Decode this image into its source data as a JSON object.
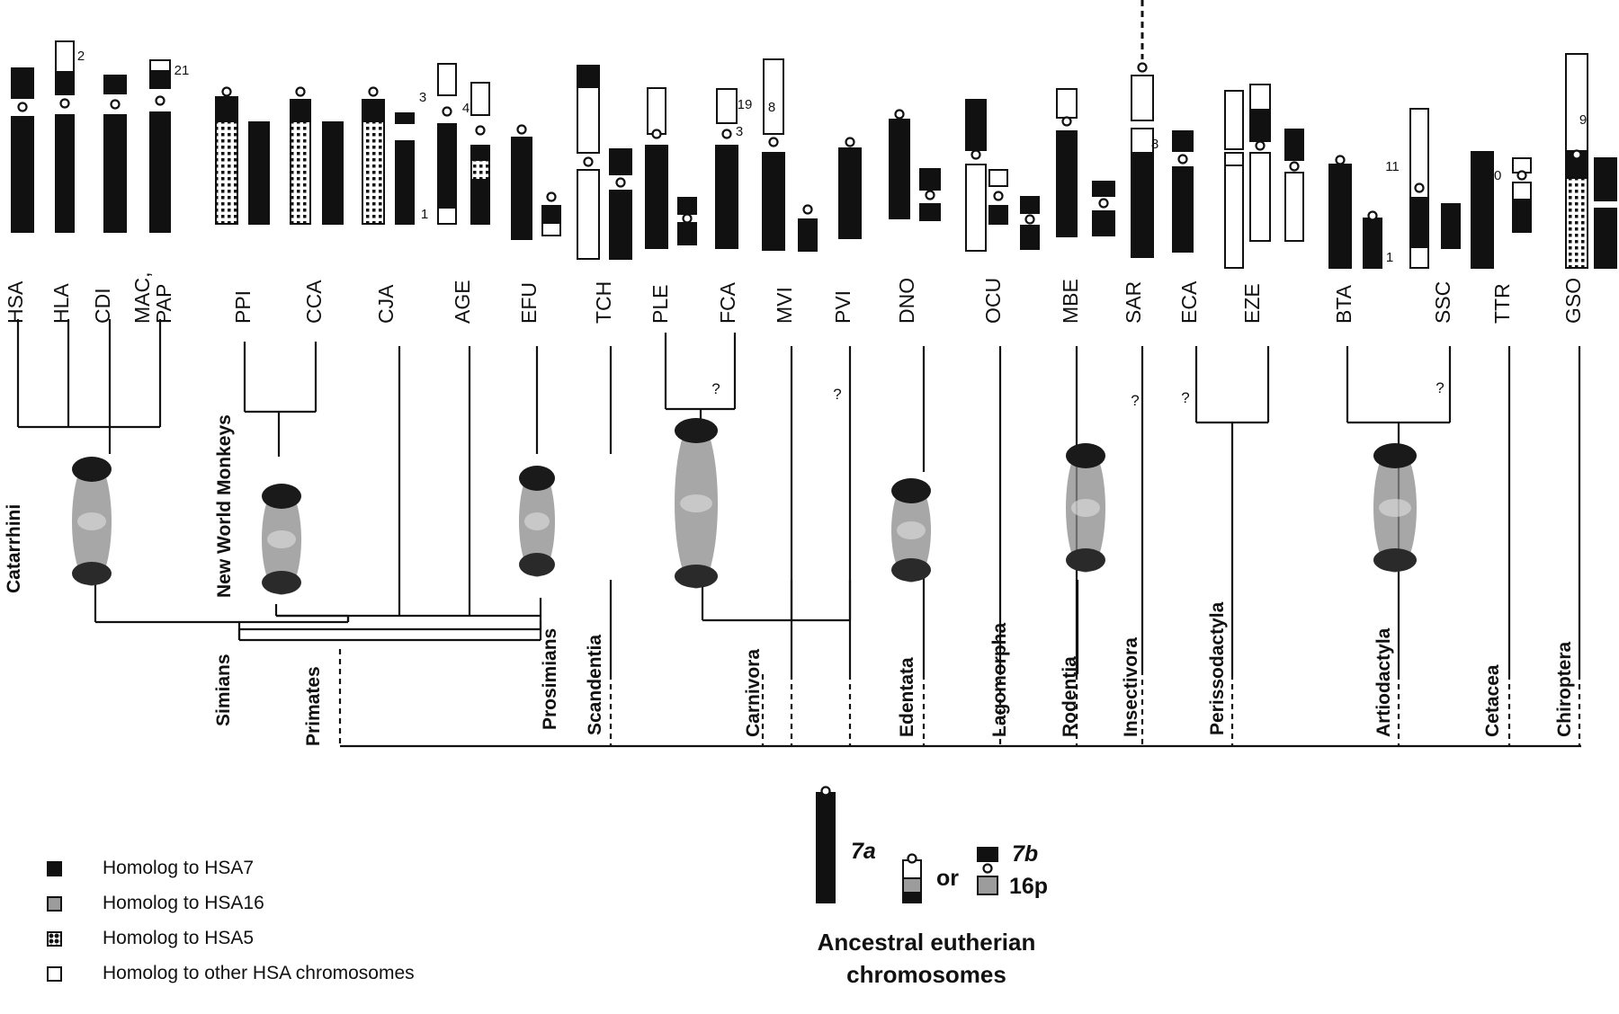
{
  "figure": {
    "species_top": [
      "HSA",
      "HLA",
      "CDI",
      "MAC,\nPAP",
      "PPI",
      "CCA",
      "CJA",
      "AGE",
      "EFU",
      "TCH",
      "PLE",
      "FCA",
      "MVI",
      "PVI",
      "DNO",
      "OCU",
      "MBE",
      "SAR",
      "ECA",
      "EZE",
      "BTA",
      "SSC",
      "TTR",
      "GSO"
    ],
    "chromosome_numbers": [
      "2",
      "21",
      "3",
      "4",
      "1",
      "19",
      "3",
      "8",
      "8",
      "11",
      "1",
      "20",
      "9"
    ],
    "question_marks": [
      "?",
      "?",
      "?",
      "?",
      "?"
    ],
    "clade_labels": {
      "catarrhini": "Catarrhini",
      "new_world_monkeys": "New World Monkeys",
      "simians": "Simians",
      "primates": "Primates",
      "prosimians": "Prosimians",
      "scandentia": "Scandentia",
      "carnivora": "Carnivora",
      "edentata": "Edentata",
      "lagomorpha": "Lagomorpha",
      "rodentia": "Rodentia",
      "insectivora": "Insectivora",
      "perissodactyla": "Perissodactyla",
      "artiodactyla": "Artiodactyla",
      "cetacea": "Cetacea",
      "chiroptera": "Chiroptera"
    }
  },
  "ancestral": {
    "label_7a": "7a",
    "label_or": "or",
    "label_7b": "7b",
    "label_16p": "16p",
    "title": "Ancestral eutherian chromosomes"
  },
  "legend": [
    {
      "swatch": "black",
      "label": "Homolog to HSA7"
    },
    {
      "swatch": "gray",
      "label": "Homolog to HSA16"
    },
    {
      "swatch": "dotted",
      "label": "Homolog to HSA5"
    },
    {
      "swatch": "white",
      "label": "Homolog to other HSA chromosomes"
    }
  ],
  "colors": {
    "black": "#111111",
    "gray": "#9c9c9c",
    "white": "#ffffff"
  }
}
